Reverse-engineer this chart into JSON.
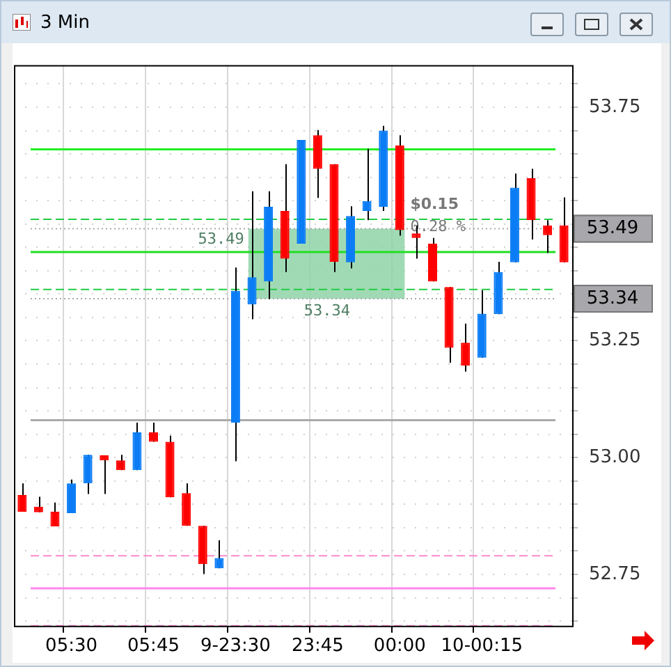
{
  "chart_data": {
    "type": "candlestick",
    "title": "3 Min",
    "categories": [
      null,
      null,
      null,
      "05:30",
      null,
      null,
      null,
      null,
      "05:45",
      null,
      null,
      null,
      null,
      "9-23:30",
      null,
      null,
      null,
      null,
      "23:45",
      null,
      null,
      null,
      null,
      "00:00",
      null,
      null,
      null,
      null,
      "10-00:15",
      null,
      null,
      null,
      null,
      null
    ],
    "ohlc": [
      [
        52.92,
        52.945,
        52.884,
        52.884
      ],
      [
        52.895,
        52.916,
        52.883,
        52.883
      ],
      [
        52.884,
        52.904,
        52.853,
        52.853
      ],
      [
        52.881,
        52.953,
        52.881,
        52.945
      ],
      [
        52.945,
        53.006,
        52.922,
        53.006
      ],
      [
        53.005,
        53.005,
        52.922,
        52.994
      ],
      [
        52.994,
        53.006,
        52.973,
        52.973
      ],
      [
        52.973,
        53.075,
        52.973,
        53.054
      ],
      [
        53.054,
        53.075,
        53.034,
        53.034
      ],
      [
        53.034,
        53.047,
        52.915,
        52.915
      ],
      [
        52.924,
        52.945,
        52.854,
        52.854
      ],
      [
        52.854,
        52.854,
        52.751,
        52.772
      ],
      [
        52.763,
        52.823,
        52.763,
        52.785
      ],
      [
        53.075,
        53.407,
        52.992,
        53.357
      ],
      [
        53.328,
        53.57,
        53.296,
        53.386
      ],
      [
        53.377,
        53.57,
        53.339,
        53.537
      ],
      [
        53.528,
        53.628,
        53.397,
        53.426
      ],
      [
        53.458,
        53.68,
        53.458,
        53.68
      ],
      [
        53.69,
        53.701,
        53.556,
        53.618
      ],
      [
        53.628,
        53.628,
        53.397,
        53.419
      ],
      [
        53.418,
        53.538,
        53.405,
        53.517
      ],
      [
        53.528,
        53.661,
        53.508,
        53.549
      ],
      [
        53.537,
        53.71,
        53.528,
        53.7
      ],
      [
        53.668,
        53.69,
        53.475,
        53.487
      ],
      [
        53.48,
        53.497,
        53.426,
        53.47
      ],
      [
        53.458,
        53.47,
        53.377,
        53.377
      ],
      [
        53.365,
        53.365,
        53.203,
        53.235
      ],
      [
        53.246,
        53.287,
        53.184,
        53.197
      ],
      [
        53.214,
        53.358,
        53.214,
        53.308
      ],
      [
        53.307,
        53.419,
        53.307,
        53.397
      ],
      [
        53.418,
        53.608,
        53.418,
        53.578
      ],
      [
        53.598,
        53.618,
        53.467,
        53.508
      ],
      [
        53.497,
        53.508,
        53.438,
        53.476
      ],
      [
        53.497,
        53.557,
        53.418,
        53.418
      ]
    ],
    "colors": [
      "#ff0000",
      "#ff0000",
      "#ff0000",
      "#0a7cf5",
      "#0a7cf5",
      "#ff0000",
      "#ff0000",
      "#0a7cf5",
      "#ff0000",
      "#ff0000",
      "#ff0000",
      "#ff0000",
      "#0a7cf5",
      "#0a7cf5",
      "#0a7cf5",
      "#0a7cf5",
      "#ff0000",
      "#0a7cf5",
      "#ff0000",
      "#ff0000",
      "#0a7cf5",
      "#0a7cf5",
      "#0a7cf5",
      "#ff0000",
      "#ff0000",
      "#ff0000",
      "#ff0000",
      "#ff0000",
      "#0a7cf5",
      "#0a7cf5",
      "#0a7cf5",
      "#ff0000",
      "#ff0000",
      "#ff0000"
    ],
    "ylim": [
      52.64,
      53.84
    ],
    "yticks": [
      {
        "value": 52.65,
        "label": null
      },
      {
        "value": 52.7,
        "label": null
      },
      52.75,
      {
        "value": 52.8,
        "label": null
      },
      {
        "value": 52.85,
        "label": null
      },
      {
        "value": 52.9,
        "label": null
      },
      {
        "value": 52.95,
        "label": null
      },
      {
        "value": 53,
        "label": "53.00"
      },
      {
        "value": 53.05,
        "label": null
      },
      {
        "value": 53.1,
        "label": null
      },
      {
        "value": 53.15,
        "label": null
      },
      {
        "value": 53.2,
        "label": null
      },
      53.25,
      {
        "value": 53.3,
        "label": null
      },
      {
        "value": 53.35,
        "label": null
      },
      {
        "value": 53.4,
        "label": null
      },
      {
        "value": 53.45,
        "label": null
      },
      {
        "value": 53.5,
        "label": null
      },
      {
        "value": 53.55,
        "label": null
      },
      {
        "value": 53.6,
        "label": null
      },
      {
        "value": 53.65,
        "label": null
      },
      {
        "value": 53.7,
        "label": null
      },
      53.75,
      {
        "value": 53.8,
        "label": null
      }
    ],
    "grid": true,
    "legend": false,
    "ref_lines": [
      {
        "axis": "y",
        "value": 53.66,
        "color": "#22ee22",
        "line_style": "solid"
      },
      {
        "axis": "y",
        "value": 53.51,
        "color": "#22cc44",
        "line_style": "dashed"
      },
      {
        "axis": "y",
        "value": 53.44,
        "color": "#22dd22",
        "line_style": "solid"
      },
      {
        "axis": "y",
        "value": 53.36,
        "color": "#22cc44",
        "line_style": "dashed"
      },
      {
        "axis": "y",
        "value": 53.08,
        "color": "#aaaaaa",
        "line_style": "solid"
      },
      {
        "axis": "y",
        "value": 52.79,
        "color": "#ff88cc",
        "line_style": "dashed"
      },
      {
        "axis": "y",
        "value": 52.72,
        "color": "#ff88ee",
        "line_style": "solid"
      },
      {
        "axis": "y",
        "value": 52.64,
        "color": "#ff88cc",
        "line_style": "dashed"
      },
      {
        "axis": "y",
        "value": 53.49,
        "label": "53.49",
        "color": "#a8a8ac",
        "line_style": "dotted"
      },
      {
        "axis": "y",
        "value": 53.34,
        "label": "53.34",
        "color": "#a8a8ac",
        "line_style": "dotted"
      }
    ],
    "bands": [
      {
        "axis": "y",
        "from": 53.34,
        "to": 53.49,
        "label": "$0.15",
        "color": "#8fd3a8"
      }
    ],
    "annotations": [
      {
        "text": "53.49",
        "y": 53.49
      },
      {
        "text": "53.34",
        "y": 53.34
      },
      {
        "text": "0.28 %",
        "y": 53.45
      }
    ]
  }
}
